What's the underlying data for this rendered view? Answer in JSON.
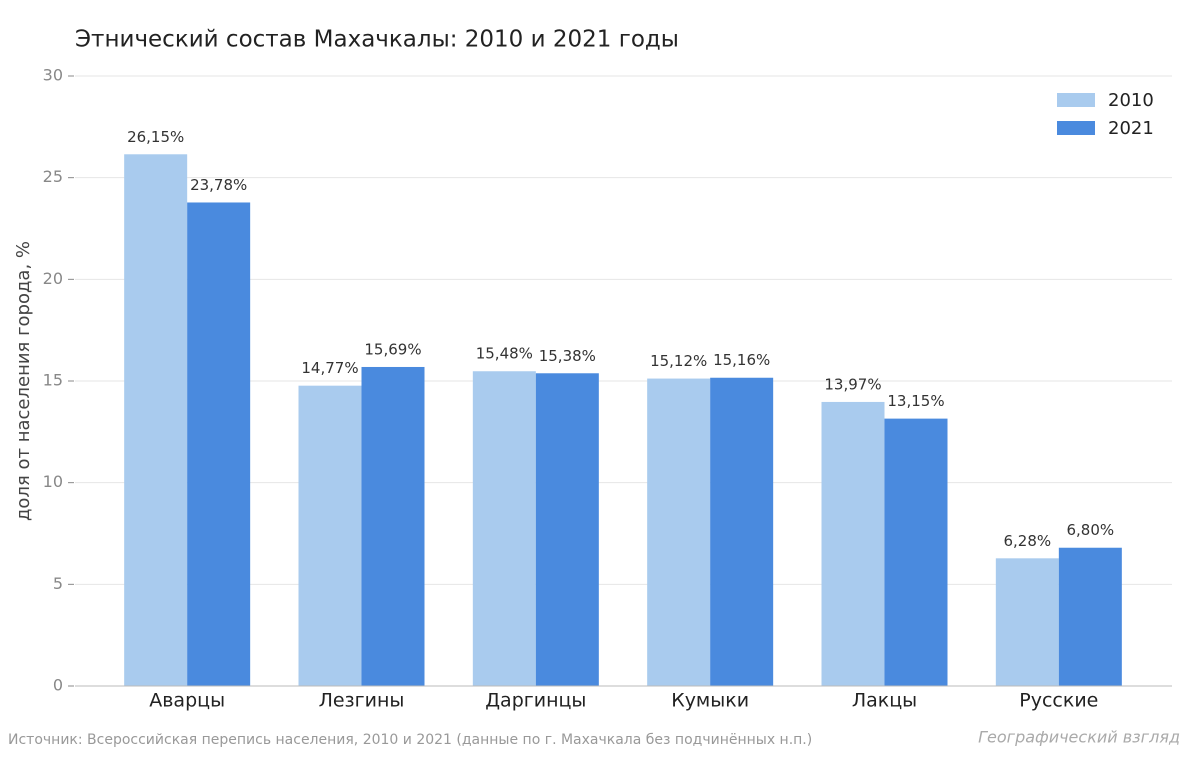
{
  "chart_data": {
    "type": "bar",
    "title": "Этнический состав Махачкалы: 2010 и 2021 годы",
    "y_label": "доля от населения города, %",
    "categories": [
      "Аварцы",
      "Лезгины",
      "Даргинцы",
      "Кумыки",
      "Лакцы",
      "Русские"
    ],
    "series": [
      {
        "name": "2010",
        "color": "#a9cbee",
        "values": [
          26.15,
          14.77,
          15.48,
          15.12,
          13.97,
          6.28
        ],
        "value_labels": [
          "26,15%",
          "14,77%",
          "15,48%",
          "15,12%",
          "13,97%",
          "6,28%"
        ]
      },
      {
        "name": "2021",
        "color": "#4a8ade",
        "values": [
          23.78,
          15.69,
          15.38,
          15.16,
          13.15,
          6.8
        ],
        "value_labels": [
          "23,78%",
          "15,69%",
          "15,38%",
          "15,16%",
          "13,15%",
          "6,80%"
        ]
      }
    ],
    "ylim": [
      0,
      30
    ],
    "yticks": [
      0,
      5,
      10,
      15,
      20,
      25,
      30
    ],
    "grid": true,
    "legend": "upper right",
    "source": "Источник: Всероссийская перепись населения, 2010 и 2021 (данные по г. Махачкала без подчинённых н.п.)",
    "brand": "Географический взгляд"
  }
}
